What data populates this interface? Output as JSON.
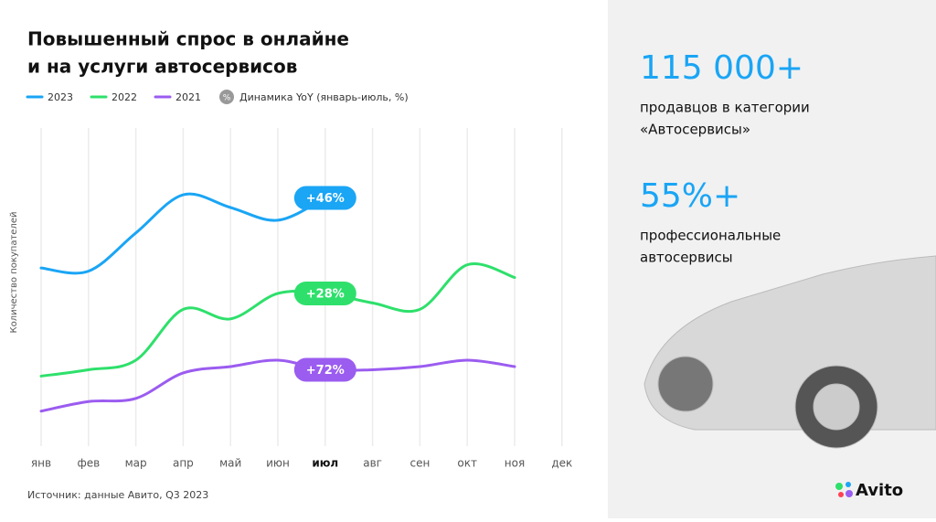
{
  "chart_data": {
    "type": "line",
    "title_lines": [
      "Повышенный спрос в онлайне",
      "и на услуги автосервисов"
    ],
    "y_axis_label": "Количество покупателей",
    "categories": [
      "янв",
      "фев",
      "мар",
      "апр",
      "май",
      "июн",
      "июл",
      "авг",
      "сен",
      "окт",
      "ноя",
      "дек"
    ],
    "highlight_index": 6,
    "ylim": [
      0,
      100
    ],
    "legend_badge": "%",
    "legend_note": "Динамика YoY (январь-июль, %)",
    "series": [
      {
        "name": "2023",
        "color": "#1aa5f5",
        "badge": "+46%",
        "values": [
          56,
          55,
          67,
          79,
          75,
          71,
          78,
          null,
          null,
          null,
          null,
          null
        ]
      },
      {
        "name": "2022",
        "color": "#2ee06b",
        "badge": "+28%",
        "values": [
          22,
          24,
          27,
          43,
          40,
          48,
          48,
          45,
          43,
          57,
          53,
          null
        ]
      },
      {
        "name": "2021",
        "color": "#9b5cf0",
        "badge": "+72%",
        "values": [
          11,
          14,
          15,
          23,
          25,
          27,
          24,
          24,
          25,
          27,
          25,
          null
        ]
      }
    ],
    "source": "Источник: данные Авито, Q3 2023"
  },
  "side": {
    "stats": [
      {
        "value": "115 000+",
        "lines": [
          "продавцов в категории",
          "«Автосервисы»"
        ]
      },
      {
        "value": "55%+",
        "lines": [
          "профессиональные",
          "автосервисы"
        ]
      }
    ],
    "logo": "Avito"
  }
}
